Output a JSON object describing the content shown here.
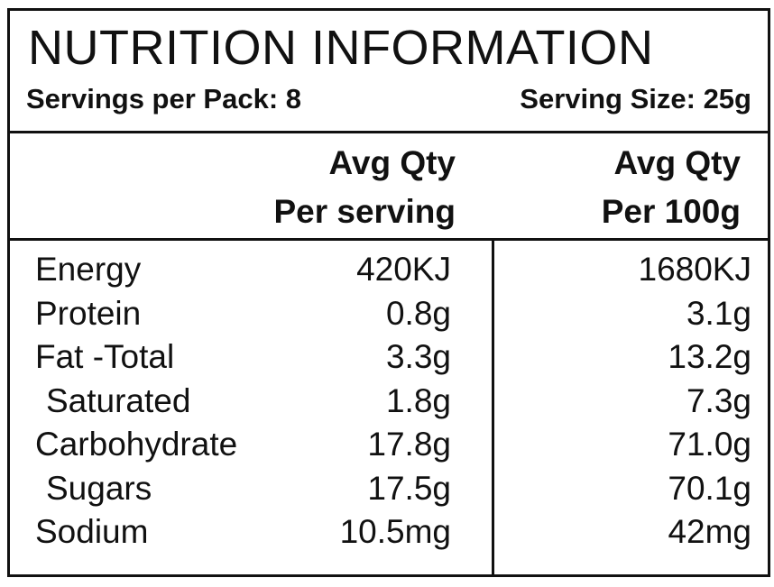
{
  "title": "NUTRITION INFORMATION",
  "servings_per_pack": "Servings per Pack: 8",
  "serving_size": "Serving Size: 25g",
  "columns": {
    "per_serving": [
      "Avg Qty",
      "Per serving"
    ],
    "per_100g": [
      "Avg Qty",
      "Per 100g"
    ]
  },
  "rows": [
    {
      "name": "Energy",
      "indent": false,
      "per_serving": "420KJ",
      "per_100g": "1680KJ"
    },
    {
      "name": "Protein",
      "indent": false,
      "per_serving": "0.8g",
      "per_100g": "3.1g"
    },
    {
      "name": "Fat -Total",
      "indent": false,
      "per_serving": "3.3g",
      "per_100g": "13.2g"
    },
    {
      "name": "Saturated",
      "indent": true,
      "per_serving": "1.8g",
      "per_100g": "7.3g"
    },
    {
      "name": "Carbohydrate",
      "indent": false,
      "per_serving": "17.8g",
      "per_100g": "71.0g"
    },
    {
      "name": "Sugars",
      "indent": true,
      "per_serving": "17.5g",
      "per_100g": "70.1g"
    },
    {
      "name": "Sodium",
      "indent": false,
      "per_serving": "10.5mg",
      "per_100g": "42mg"
    }
  ]
}
